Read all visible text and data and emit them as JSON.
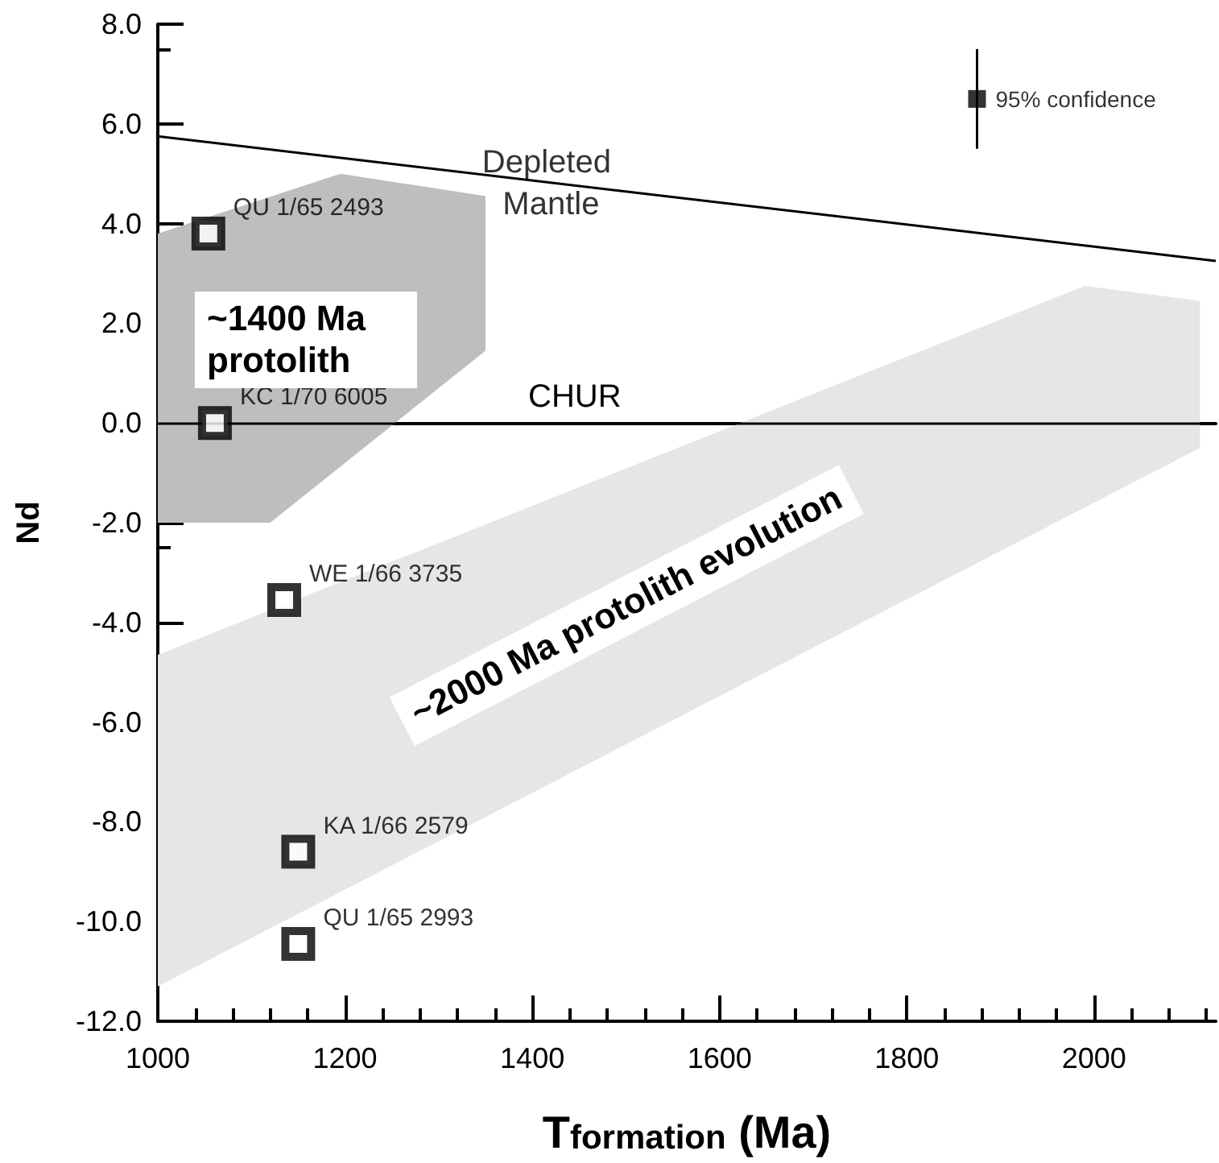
{
  "chart_data": {
    "type": "scatter",
    "xlabel": "T$_{formation}$ (Ma)",
    "ylabel": "Nd",
    "xlim": [
      1000,
      2130
    ],
    "xticks": [
      1000,
      1200,
      1400,
      1600,
      1800,
      2000
    ],
    "ylim": [
      -12,
      8
    ],
    "yticks": [
      {
        "value": -12,
        "label": "-12.0"
      },
      {
        "value": -10,
        "label": "-10.0"
      },
      {
        "value": -8,
        "label": "-8.0"
      },
      {
        "value": -6,
        "label": "-6.0"
      },
      {
        "value": -4,
        "label": "-4.0"
      },
      {
        "value": -2,
        "label": "-2.0"
      },
      {
        "value": 0,
        "label": "0.0"
      },
      {
        "value": 2,
        "label": "2.0"
      },
      {
        "value": 4,
        "label": "4.0"
      },
      {
        "value": 6,
        "label": "6.0"
      },
      {
        "value": 8,
        "label": "8.0"
      }
    ],
    "grid": false,
    "marker": "square",
    "ref_lines": [
      {
        "axis": "y",
        "value": 0,
        "label": "CHUR",
        "color": "#000000"
      }
    ],
    "annotations": [
      {
        "text": "Depleted Mantle",
        "x": 1420,
        "y": 4.8
      }
    ],
    "series": [
      {
        "type": "area",
        "name": "~1400 Ma protolith",
        "color": "#bebebe",
        "marker": "none",
        "x": [
          1000,
          1195,
          1350,
          1350,
          1120,
          1000
        ],
        "values": [
          3.8,
          5.0,
          4.55,
          1.45,
          -2.0,
          -2.0
        ]
      },
      {
        "type": "area",
        "name": "~2000 Ma protolith evolution",
        "color": "#e6e6e6",
        "marker": "none",
        "x": [
          1000,
          1990,
          2113,
          2113,
          1000
        ],
        "values": [
          -4.65,
          2.75,
          2.45,
          -0.5,
          -11.3
        ]
      },
      {
        "type": "line",
        "color": "#000000",
        "x": [
          1000,
          2130
        ],
        "values": [
          5.75,
          3.25
        ],
        "marker": "none"
      },
      {
        "color": "#000000",
        "x": [
          1054,
          1061,
          1135,
          1150,
          1150
        ],
        "values": [
          3.8,
          0.0,
          -3.55,
          -8.6,
          -10.45
        ],
        "value_labels": [
          "QU 1/65 2493",
          "KC 1/70 6005",
          "WE 1/66 3735",
          "KA 1/66 2579",
          "QU 1/65 2993"
        ]
      },
      {
        "name": "95% confidence",
        "color": "#000000",
        "x": [
          1875
        ],
        "values": [
          6.5
        ],
        "errors": [
          1.0
        ]
      }
    ]
  }
}
